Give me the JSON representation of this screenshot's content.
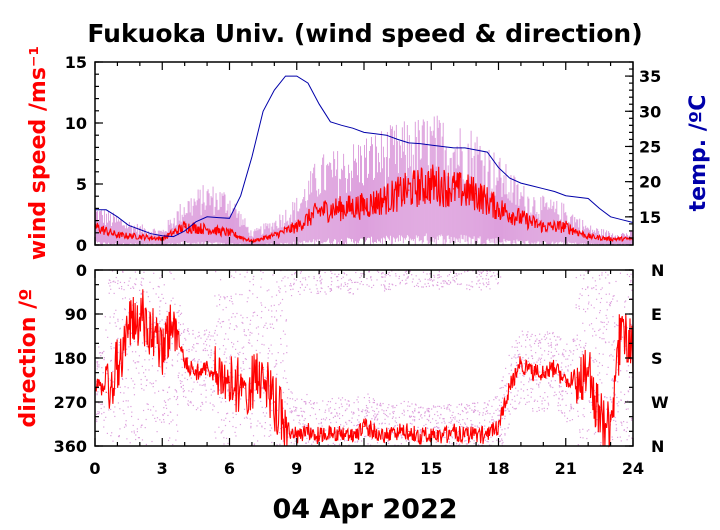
{
  "chart_data": [
    {
      "type": "line",
      "title": "Fukuoka Univ. (wind speed & direction)",
      "ylabel": "wind speed /ms⁻¹",
      "ylabel_right": "temp. /ºC",
      "xlim": [
        0,
        24
      ],
      "ylim": [
        0,
        15
      ],
      "ylim_right": [
        11,
        37
      ],
      "yticks": [
        "0",
        "5",
        "10",
        "15"
      ],
      "yticks_right": [
        "15",
        "20",
        "25",
        "30",
        "35"
      ],
      "colors": {
        "mean": "#ff0000",
        "gust": "#dda0dd",
        "temp": "#0000aa"
      },
      "series": [
        {
          "kind": "mean wind speed",
          "x": [
            0,
            1,
            2,
            3,
            4,
            5,
            6,
            7,
            8,
            9,
            10,
            11,
            12,
            13,
            14,
            15,
            16,
            17,
            18,
            19,
            20,
            21,
            22,
            23,
            24
          ],
          "values": [
            1.5,
            0.8,
            0.7,
            0.5,
            1.5,
            1.3,
            1.0,
            0.3,
            0.8,
            1.5,
            2.8,
            3.0,
            3.2,
            3.8,
            4.5,
            5.0,
            4.6,
            4.2,
            3.0,
            2.2,
            1.5,
            1.5,
            0.7,
            0.5,
            0.5
          ]
        },
        {
          "kind": "gust range",
          "x": [
            0,
            1,
            2,
            3,
            4,
            5,
            6,
            7,
            8,
            9,
            10,
            11,
            12,
            13,
            14,
            15,
            16,
            17,
            18,
            19,
            20,
            21,
            22,
            23,
            24
          ],
          "values": [
            3.0,
            2.2,
            1.5,
            1.2,
            3.5,
            4.5,
            4.0,
            1.0,
            2.0,
            3.5,
            6.5,
            7.0,
            8.0,
            8.5,
            9.0,
            9.5,
            9.0,
            8.5,
            6.5,
            4.5,
            3.5,
            3.0,
            1.5,
            1.0,
            1.0
          ]
        },
        {
          "kind": "temperature",
          "axis": "right",
          "x": [
            0,
            0.5,
            1,
            1.5,
            2,
            2.5,
            3,
            3.5,
            4,
            4.5,
            5,
            5.5,
            6,
            6.5,
            7,
            7.5,
            8,
            8.5,
            9,
            9.5,
            10,
            10.5,
            11,
            11.5,
            12,
            12.5,
            13,
            13.5,
            14,
            14.5,
            15,
            15.5,
            16,
            16.5,
            17,
            17.5,
            18,
            18.5,
            19,
            19.5,
            20,
            20.5,
            21,
            21.5,
            22,
            22.5,
            23,
            23.5,
            24
          ],
          "values": [
            16.0,
            16.0,
            15.0,
            13.8,
            13.2,
            12.6,
            12.3,
            12.2,
            13.0,
            14.3,
            15.0,
            14.9,
            14.8,
            18.0,
            23.5,
            30.0,
            33.0,
            35.0,
            35.0,
            34.0,
            31.0,
            28.5,
            28.0,
            27.6,
            27.0,
            26.8,
            26.6,
            26.0,
            25.5,
            25.4,
            25.2,
            25.0,
            24.8,
            24.8,
            24.5,
            24.2,
            22.0,
            20.5,
            19.8,
            19.4,
            19.0,
            18.6,
            18.0,
            17.8,
            17.6,
            16.2,
            15.0,
            14.6,
            14.2
          ]
        }
      ]
    },
    {
      "type": "scatter",
      "ylabel": "direction /º",
      "xlim": [
        0,
        24
      ],
      "ylim": [
        360,
        0
      ],
      "yticks": [
        "0",
        "90",
        "180",
        "270",
        "360"
      ],
      "yticks_right": [
        "N",
        "E",
        "S",
        "W",
        "N"
      ],
      "xticks": [
        "0",
        "3",
        "6",
        "9",
        "12",
        "15",
        "18",
        "21",
        "24"
      ],
      "xlabel": "04 Apr 2022",
      "series": [
        {
          "kind": "mean direction",
          "x": [
            0,
            0.5,
            1,
            1.5,
            2,
            2.5,
            3,
            3.5,
            4,
            4.5,
            5,
            5.5,
            6,
            6.5,
            7,
            7.5,
            8,
            8.5,
            9,
            9.5,
            10,
            10.5,
            11,
            11.5,
            12,
            12.5,
            13,
            13.5,
            14,
            14.5,
            15,
            15.5,
            16,
            16.5,
            17,
            17.5,
            18,
            18.5,
            19,
            19.5,
            20,
            20.5,
            21,
            21.5,
            22,
            22.5,
            23,
            23.5,
            24
          ],
          "values": [
            230,
            250,
            200,
            120,
            90,
            120,
            160,
            100,
            190,
            210,
            200,
            220,
            230,
            240,
            230,
            200,
            270,
            320,
            340,
            330,
            340,
            335,
            330,
            340,
            320,
            330,
            340,
            330,
            330,
            340,
            335,
            340,
            330,
            340,
            335,
            340,
            320,
            240,
            190,
            210,
            210,
            200,
            230,
            220,
            200,
            300,
            310,
            100,
            180
          ]
        }
      ]
    }
  ]
}
